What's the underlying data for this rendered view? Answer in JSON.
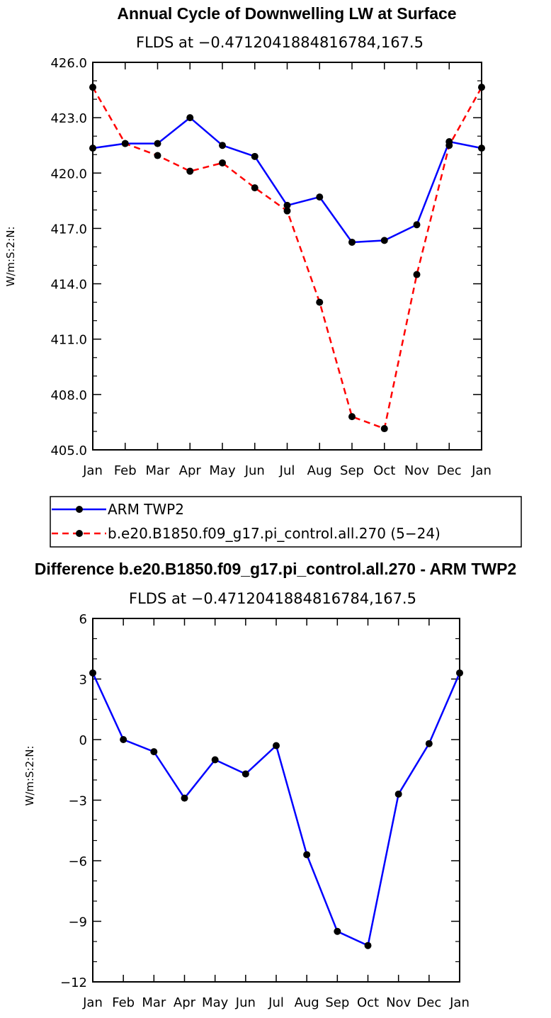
{
  "chart_data": [
    {
      "type": "line",
      "title": "Annual Cycle of Downwelling LW at Surface",
      "subtitle": "FLDS at −0.4712041884816784,167.5",
      "ylabel": "W/m:S:2:N:",
      "categories": [
        "Jan",
        "Feb",
        "Mar",
        "Apr",
        "May",
        "Jun",
        "Jul",
        "Aug",
        "Sep",
        "Oct",
        "Nov",
        "Dec",
        "Jan"
      ],
      "ylim": [
        405.0,
        426.0
      ],
      "yticks": [
        "405.0",
        "408.0",
        "411.0",
        "414.0",
        "417.0",
        "420.0",
        "423.0",
        "426.0"
      ],
      "series": [
        {
          "name": "ARM TWP2",
          "color": "#0000ff",
          "dash": "solid",
          "values": [
            421.35,
            421.6,
            421.6,
            423.0,
            421.5,
            420.9,
            418.25,
            418.7,
            416.25,
            416.35,
            417.2,
            421.7,
            421.35
          ]
        },
        {
          "name": "b.e20.B1850.f09_g17.pi_control.all.270 (5−24)",
          "color": "#ff0000",
          "dash": "dashed",
          "values": [
            424.65,
            421.6,
            420.95,
            420.1,
            420.55,
            419.2,
            417.95,
            413.0,
            406.8,
            406.15,
            414.5,
            421.5,
            424.65
          ]
        }
      ],
      "legend": [
        "ARM TWP2",
        "b.e20.B1850.f09_g17.pi_control.all.270 (5−24)"
      ]
    },
    {
      "type": "line",
      "title": "Difference b.e20.B1850.f09_g17.pi_control.all.270 - ARM TWP2",
      "subtitle": "FLDS at −0.4712041884816784,167.5",
      "ylabel": "W/m:S:2:N:",
      "categories": [
        "Jan",
        "Feb",
        "Mar",
        "Apr",
        "May",
        "Jun",
        "Jul",
        "Aug",
        "Sep",
        "Oct",
        "Nov",
        "Dec",
        "Jan"
      ],
      "ylim": [
        -12,
        6
      ],
      "yticks": [
        "−12",
        "−9",
        "−6",
        "−3",
        "0",
        "3",
        "6"
      ],
      "series": [
        {
          "name": "Difference",
          "color": "#0000ff",
          "dash": "solid",
          "values": [
            3.3,
            0.0,
            -0.6,
            -2.9,
            -1.0,
            -1.7,
            -0.3,
            -5.7,
            -9.5,
            -10.2,
            -2.7,
            -0.2,
            3.3
          ]
        }
      ]
    }
  ]
}
